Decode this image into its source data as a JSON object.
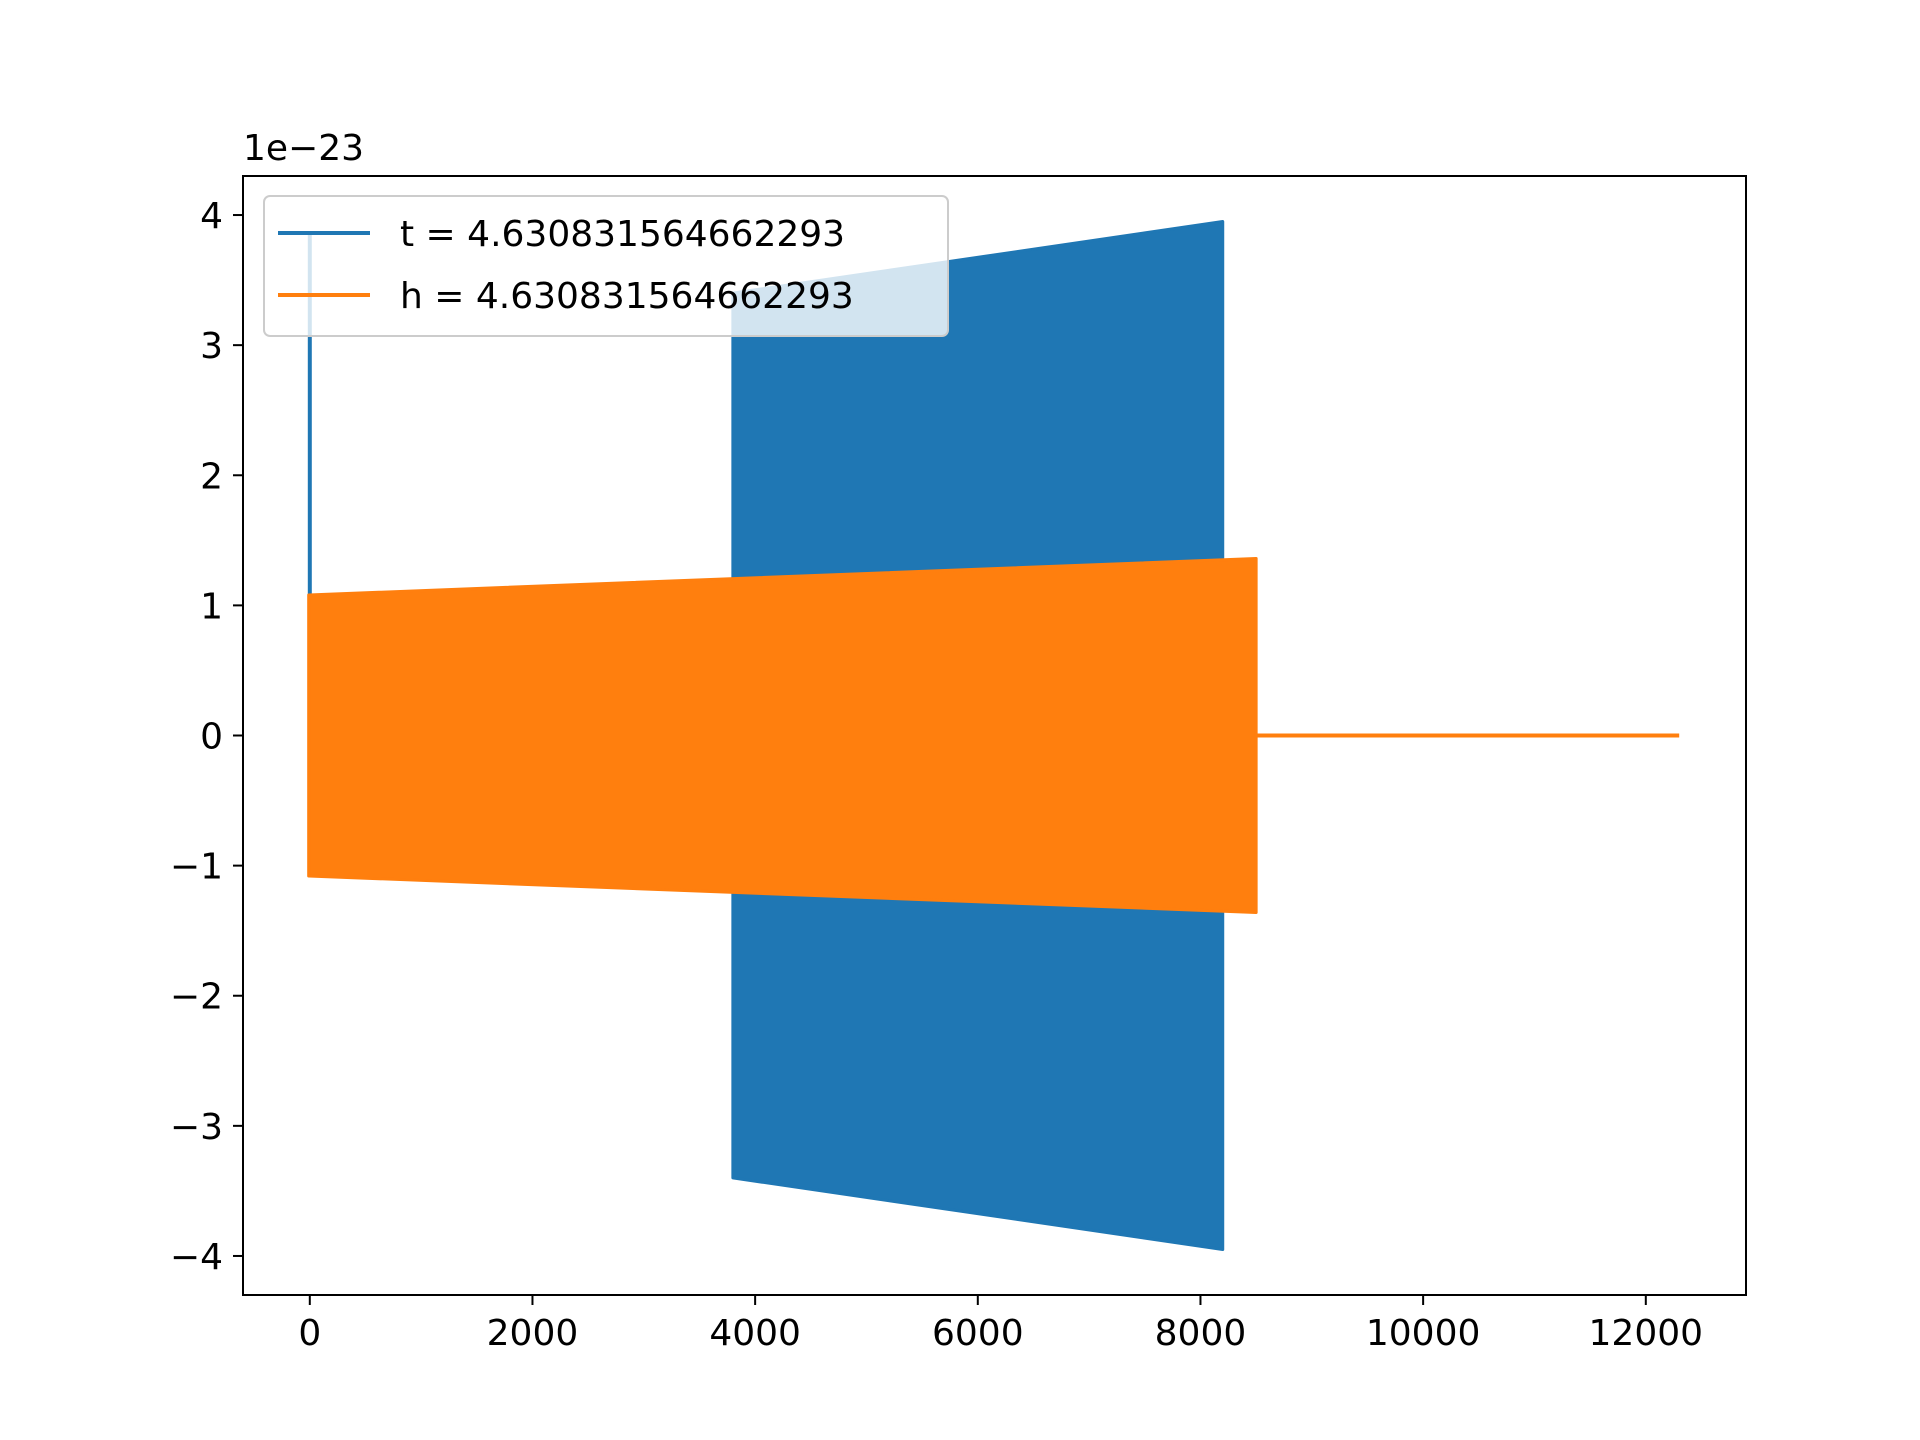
{
  "chart_data": {
    "type": "line",
    "title": "",
    "xlabel": "",
    "ylabel": "",
    "y_offset_label": "1e−23",
    "xlim": [
      -600,
      12900
    ],
    "ylim": [
      -4.3,
      4.3
    ],
    "x_ticks": [
      0,
      2000,
      4000,
      6000,
      8000,
      10000,
      12000
    ],
    "x_tick_labels": [
      "0",
      "2000",
      "4000",
      "6000",
      "8000",
      "10000",
      "12000"
    ],
    "y_ticks": [
      -4,
      -3,
      -2,
      -1,
      0,
      1,
      2,
      3,
      4
    ],
    "y_tick_labels": [
      "−4",
      "−3",
      "−2",
      "−1",
      "0",
      "1",
      "2",
      "3",
      "4"
    ],
    "grid": false,
    "legend_position": "upper-left",
    "series": [
      {
        "name": "t = 4.630831564662293",
        "color": "#1f77b4",
        "spike": {
          "x": 0,
          "y": 3.85
        },
        "envelope": {
          "x": [
            3800,
            8200
          ],
          "upper": [
            3.4,
            3.95
          ],
          "lower": [
            -3.4,
            -3.95
          ]
        }
      },
      {
        "name": "h = 4.630831564662293",
        "color": "#ff7f0e",
        "envelope": {
          "x": [
            -10,
            8500
          ],
          "upper": [
            1.08,
            1.36
          ],
          "lower": [
            -1.08,
            -1.36
          ]
        },
        "tail": {
          "x": [
            8500,
            12300
          ],
          "y": [
            0,
            0
          ]
        }
      }
    ]
  }
}
